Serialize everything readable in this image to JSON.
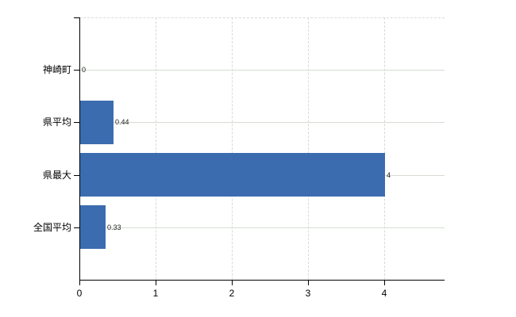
{
  "chart_data": {
    "type": "bar",
    "orientation": "horizontal",
    "title": "",
    "xlabel": "",
    "ylabel": "",
    "categories": [
      "神崎町",
      "県平均",
      "県最大",
      "全国平均"
    ],
    "values": [
      0,
      0.44,
      4,
      0.33
    ],
    "value_labels": [
      "0",
      "0.44",
      "4",
      "0.33"
    ],
    "x_ticks": [
      "0",
      "1",
      "2",
      "3",
      "4"
    ],
    "x_tick_values": [
      0,
      1,
      2,
      3,
      4
    ],
    "xlim": [
      0,
      4.79
    ],
    "grid": true,
    "legend": "none",
    "colors": {
      "bar": "#3c6cb0",
      "h_gridline": "#d5ddd3",
      "v_gridline": "#d9d9d9",
      "top_border": "#d9d9d9",
      "axis": "#000000",
      "background": "#ffffff",
      "text": "#000000"
    }
  }
}
